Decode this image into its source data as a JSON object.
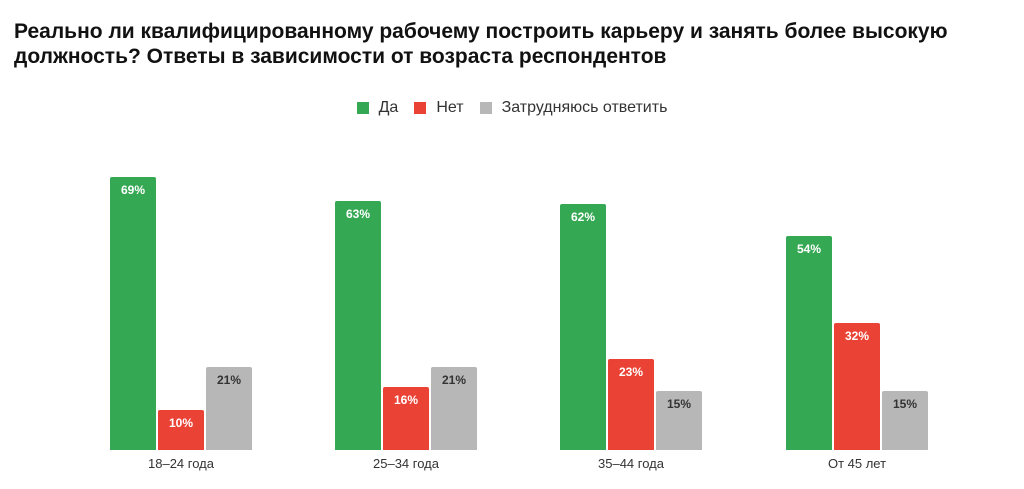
{
  "title": "Реально ли квалифицированному рабочему построить карьеру и занять более высокую должность? Ответы в зависимости от возраста респондентов",
  "legend": [
    {
      "label": "Да",
      "color": "#34a853"
    },
    {
      "label": "Нет",
      "color": "#ea4335"
    },
    {
      "label": "Затрудняюсь ответить",
      "color": "#b7b7b7"
    }
  ],
  "chart_data": {
    "type": "bar",
    "title": "Реально ли квалифицированному рабочему построить карьеру и занять более высокую должность? Ответы в зависимости от возраста респондентов",
    "xlabel": "",
    "ylabel": "",
    "categories": [
      "18–24 года",
      "25–34 года",
      "35–44 года",
      "От 45 лет"
    ],
    "series": [
      {
        "name": "Да",
        "color": "#34a853",
        "values": [
          69,
          63,
          62,
          54
        ]
      },
      {
        "name": "Нет",
        "color": "#ea4335",
        "values": [
          10,
          16,
          23,
          32
        ]
      },
      {
        "name": "Затрудняюсь ответить",
        "color": "#b7b7b7",
        "values": [
          21,
          21,
          15,
          15
        ]
      }
    ],
    "value_suffix": "%",
    "ylim": [
      0,
      70
    ],
    "grid": false,
    "legend_position": "top"
  }
}
